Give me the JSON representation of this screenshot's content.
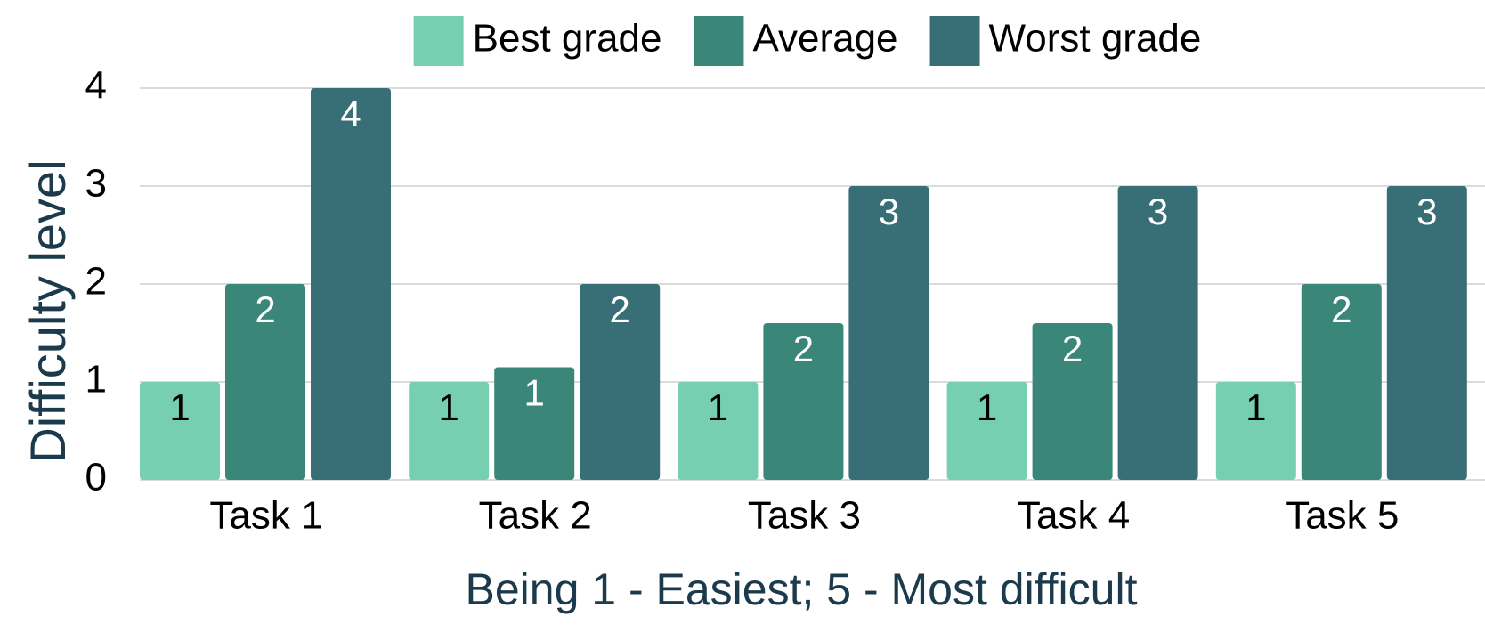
{
  "chart_data": {
    "type": "bar",
    "x_label": "Being 1 - Easiest; 5 - Most difficult",
    "y_label": "Difficulty level",
    "categories": [
      "Task 1",
      "Task 2",
      "Task 3",
      "Task 4",
      "Task 5"
    ],
    "series": [
      {
        "name": "Best grade",
        "color": "#76cfb0",
        "label_color": "#000000",
        "values": [
          1,
          1,
          1,
          1,
          1
        ]
      },
      {
        "name": "Average",
        "color": "#3a877a",
        "label_color": "#ffffff",
        "values": [
          2,
          1.15,
          1.6,
          1.6,
          2
        ],
        "value_labels": [
          "2",
          "1",
          "2",
          "2",
          "2"
        ]
      },
      {
        "name": "Worst grade",
        "color": "#386e76",
        "label_color": "#ffffff",
        "values": [
          4,
          2,
          3,
          3,
          3
        ]
      }
    ],
    "ylim": [
      0,
      4
    ],
    "yticks": [
      0,
      1,
      2,
      3,
      4
    ],
    "grid": true,
    "legend": "top"
  }
}
